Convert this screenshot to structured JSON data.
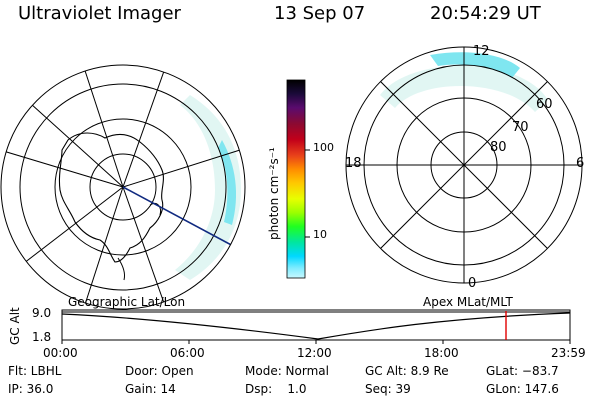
{
  "header": {
    "instrument": "Ultraviolet Imager",
    "date": "13 Sep 07",
    "time": "20:54:29 UT"
  },
  "colorbar": {
    "unit_label": "photon cm⁻²s⁻¹",
    "ticks": [
      "100",
      "10"
    ],
    "colors": [
      "#000000",
      "#1b0a3a",
      "#5a0b6e",
      "#8b0a32",
      "#c2001a",
      "#e8401a",
      "#ff8c00",
      "#ffc800",
      "#e8ff00",
      "#9bff00",
      "#20ff20",
      "#00e6a0",
      "#00d8ff",
      "#80ecff",
      "#c8f8ff"
    ]
  },
  "geo_panel": {
    "label": "Geographic Lat/Lon"
  },
  "apex_panel": {
    "label": "Apex MLat/MLT",
    "lat_labels": [
      "60",
      "70",
      "80"
    ],
    "mlt_labels": [
      "12",
      "18",
      "6",
      "0"
    ]
  },
  "timeline": {
    "ylabel": "GC Alt",
    "yticks": [
      "9.0",
      "1.8"
    ],
    "xticks": [
      "00:00",
      "06:00",
      "12:00",
      "18:00",
      "23:59"
    ],
    "current_marker_color": "#e00000"
  },
  "status": {
    "filter": "Flt: LBHL",
    "ip": "IP: 36.0",
    "door": "Door: Open",
    "gain": "Gain: 14",
    "mode": "Mode: Normal",
    "dsp": "Dsp:    1.0",
    "gc_alt": "GC Alt: 8.9 Re",
    "seq": "Seq: 39",
    "glat": "GLat: −83.7",
    "glon": "GLon: 147.6"
  }
}
